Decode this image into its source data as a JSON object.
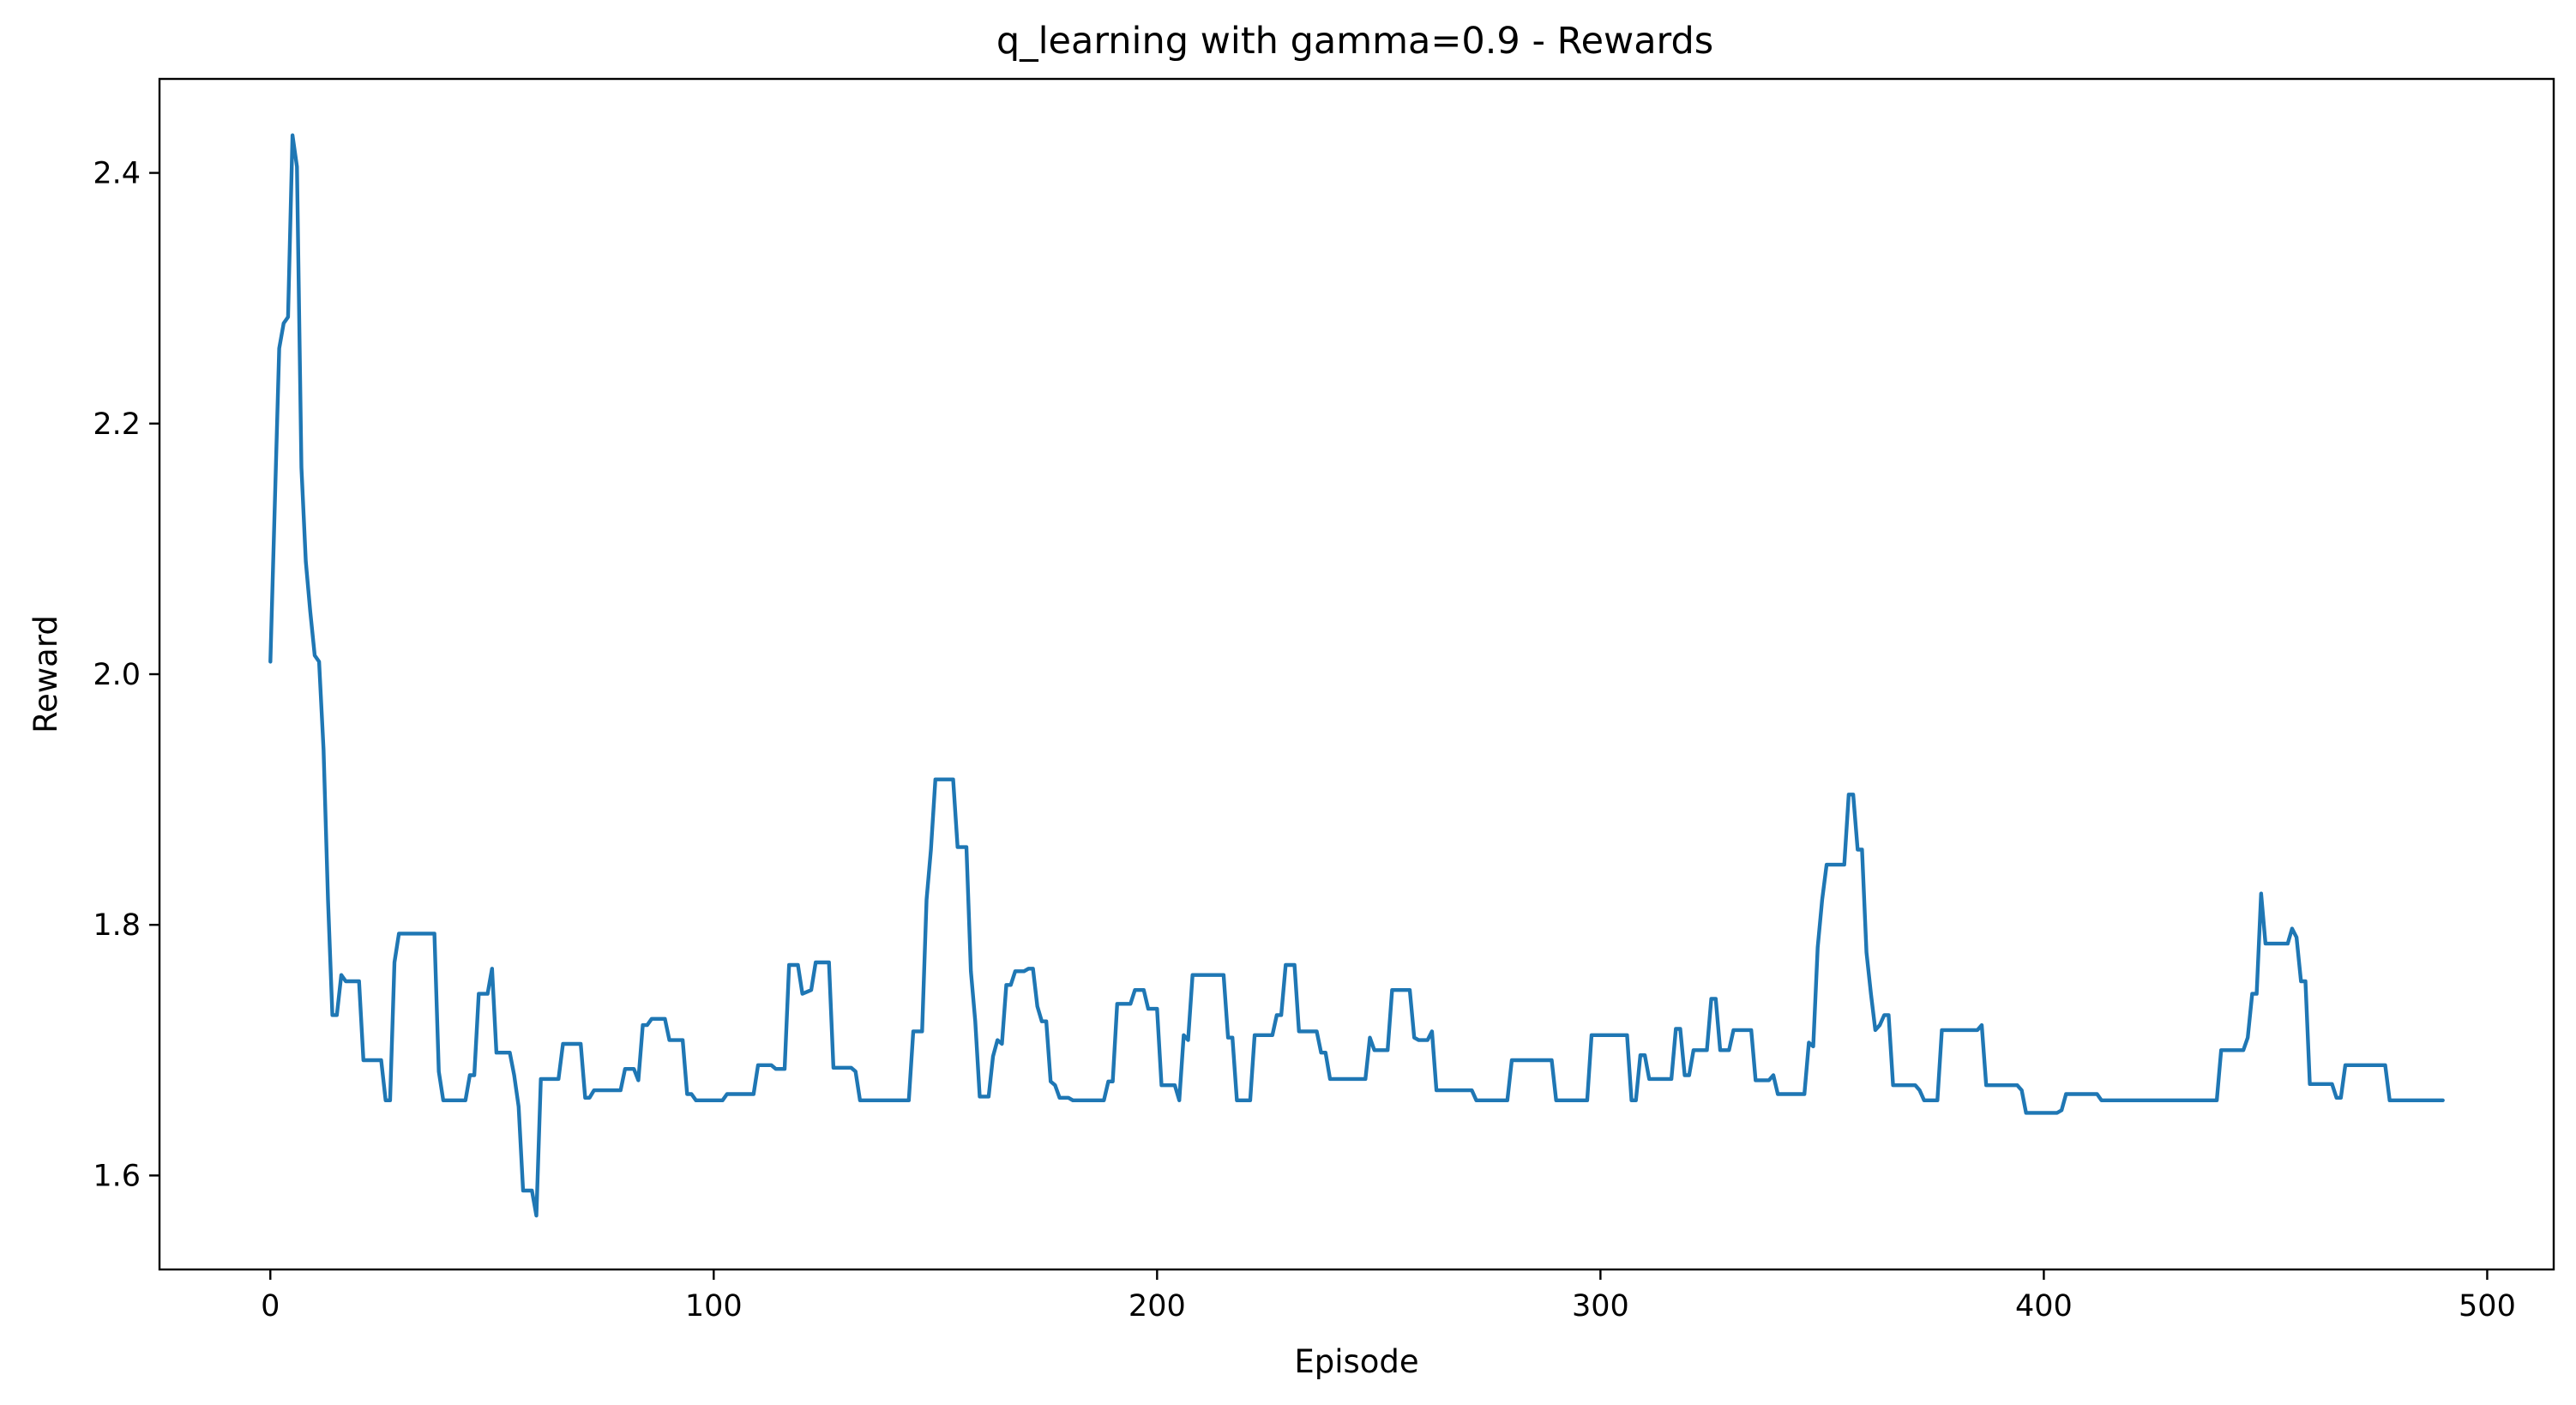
{
  "chart_data": {
    "type": "line",
    "title": "q_learning with gamma=0.9 - Rewards",
    "xlabel": "Episode",
    "ylabel": "Reward",
    "xlim": [
      -25,
      515
    ],
    "ylim": [
      1.525,
      2.475
    ],
    "xticks": [
      0,
      100,
      200,
      300,
      400,
      500
    ],
    "yticks": [
      1.6,
      1.8,
      2.0,
      2.2,
      2.4
    ],
    "xtick_labels": [
      "0",
      "100",
      "200",
      "300",
      "400",
      "500"
    ],
    "ytick_labels": [
      "1.6",
      "1.8",
      "2.0",
      "2.2",
      "2.4"
    ],
    "grid": false,
    "series_color": "#1f77b4",
    "series": [
      {
        "points": [
          [
            0,
            2.01
          ],
          [
            2,
            2.26
          ],
          [
            3,
            2.28
          ],
          [
            4,
            2.285
          ],
          [
            5,
            2.43
          ],
          [
            6,
            2.405
          ],
          [
            7,
            2.165
          ],
          [
            8,
            2.09
          ],
          [
            9,
            2.05
          ],
          [
            10,
            2.015
          ],
          [
            11,
            2.01
          ],
          [
            12,
            1.94
          ],
          [
            13,
            1.82
          ],
          [
            14,
            1.728
          ],
          [
            15,
            1.728
          ],
          [
            16,
            1.76
          ],
          [
            17,
            1.755
          ],
          [
            20,
            1.755
          ],
          [
            21,
            1.692
          ],
          [
            23,
            1.692
          ],
          [
            25,
            1.692
          ],
          [
            26,
            1.66
          ],
          [
            27,
            1.66
          ],
          [
            28,
            1.77
          ],
          [
            29,
            1.793
          ],
          [
            35,
            1.793
          ],
          [
            37,
            1.793
          ],
          [
            38,
            1.683
          ],
          [
            39,
            1.66
          ],
          [
            44,
            1.66
          ],
          [
            45,
            1.68
          ],
          [
            46,
            1.68
          ],
          [
            47,
            1.745
          ],
          [
            49,
            1.745
          ],
          [
            50,
            1.765
          ],
          [
            51,
            1.698
          ],
          [
            54,
            1.698
          ],
          [
            55,
            1.68
          ],
          [
            56,
            1.655
          ],
          [
            57,
            1.588
          ],
          [
            59,
            1.588
          ],
          [
            60,
            1.568
          ],
          [
            61,
            1.677
          ],
          [
            65,
            1.677
          ],
          [
            66,
            1.705
          ],
          [
            70,
            1.705
          ],
          [
            71,
            1.662
          ],
          [
            72,
            1.662
          ],
          [
            73,
            1.668
          ],
          [
            79,
            1.668
          ],
          [
            80,
            1.685
          ],
          [
            82,
            1.685
          ],
          [
            83,
            1.676
          ],
          [
            84,
            1.72
          ],
          [
            85,
            1.72
          ],
          [
            86,
            1.725
          ],
          [
            89,
            1.725
          ],
          [
            90,
            1.708
          ],
          [
            93,
            1.708
          ],
          [
            94,
            1.665
          ],
          [
            95,
            1.665
          ],
          [
            96,
            1.66
          ],
          [
            102,
            1.66
          ],
          [
            103,
            1.665
          ],
          [
            109,
            1.665
          ],
          [
            110,
            1.688
          ],
          [
            113,
            1.688
          ],
          [
            114,
            1.685
          ],
          [
            116,
            1.685
          ],
          [
            117,
            1.768
          ],
          [
            119,
            1.768
          ],
          [
            120,
            1.745
          ],
          [
            122,
            1.748
          ],
          [
            123,
            1.77
          ],
          [
            126,
            1.77
          ],
          [
            127,
            1.686
          ],
          [
            131,
            1.686
          ],
          [
            132,
            1.683
          ],
          [
            133,
            1.66
          ],
          [
            144,
            1.66
          ],
          [
            145,
            1.715
          ],
          [
            147,
            1.715
          ],
          [
            148,
            1.82
          ],
          [
            149,
            1.86
          ],
          [
            150,
            1.916
          ],
          [
            154,
            1.916
          ],
          [
            155,
            1.862
          ],
          [
            157,
            1.862
          ],
          [
            158,
            1.763
          ],
          [
            159,
            1.723
          ],
          [
            160,
            1.663
          ],
          [
            162,
            1.663
          ],
          [
            163,
            1.695
          ],
          [
            164,
            1.708
          ],
          [
            165,
            1.705
          ],
          [
            166,
            1.752
          ],
          [
            167,
            1.752
          ],
          [
            168,
            1.763
          ],
          [
            170,
            1.763
          ],
          [
            171,
            1.765
          ],
          [
            172,
            1.765
          ],
          [
            173,
            1.735
          ],
          [
            174,
            1.723
          ],
          [
            175,
            1.723
          ],
          [
            176,
            1.675
          ],
          [
            177,
            1.672
          ],
          [
            178,
            1.662
          ],
          [
            180,
            1.662
          ],
          [
            181,
            1.66
          ],
          [
            188,
            1.66
          ],
          [
            189,
            1.675
          ],
          [
            190,
            1.675
          ],
          [
            191,
            1.737
          ],
          [
            194,
            1.737
          ],
          [
            195,
            1.748
          ],
          [
            197,
            1.748
          ],
          [
            198,
            1.733
          ],
          [
            200,
            1.733
          ],
          [
            201,
            1.672
          ],
          [
            204,
            1.672
          ],
          [
            205,
            1.66
          ],
          [
            206,
            1.712
          ],
          [
            207,
            1.708
          ],
          [
            208,
            1.76
          ],
          [
            215,
            1.76
          ],
          [
            216,
            1.71
          ],
          [
            217,
            1.71
          ],
          [
            218,
            1.66
          ],
          [
            221,
            1.66
          ],
          [
            222,
            1.712
          ],
          [
            226,
            1.712
          ],
          [
            227,
            1.728
          ],
          [
            228,
            1.728
          ],
          [
            229,
            1.768
          ],
          [
            231,
            1.768
          ],
          [
            232,
            1.715
          ],
          [
            236,
            1.715
          ],
          [
            237,
            1.698
          ],
          [
            238,
            1.698
          ],
          [
            239,
            1.677
          ],
          [
            247,
            1.677
          ],
          [
            248,
            1.71
          ],
          [
            249,
            1.7
          ],
          [
            252,
            1.7
          ],
          [
            253,
            1.748
          ],
          [
            257,
            1.748
          ],
          [
            258,
            1.71
          ],
          [
            259,
            1.708
          ],
          [
            261,
            1.708
          ],
          [
            262,
            1.715
          ],
          [
            263,
            1.668
          ],
          [
            271,
            1.668
          ],
          [
            272,
            1.66
          ],
          [
            279,
            1.66
          ],
          [
            280,
            1.692
          ],
          [
            289,
            1.692
          ],
          [
            290,
            1.66
          ],
          [
            297,
            1.66
          ],
          [
            298,
            1.712
          ],
          [
            306,
            1.712
          ],
          [
            307,
            1.66
          ],
          [
            308,
            1.66
          ],
          [
            309,
            1.696
          ],
          [
            310,
            1.696
          ],
          [
            311,
            1.677
          ],
          [
            316,
            1.677
          ],
          [
            317,
            1.717
          ],
          [
            318,
            1.717
          ],
          [
            319,
            1.68
          ],
          [
            320,
            1.68
          ],
          [
            321,
            1.7
          ],
          [
            324,
            1.7
          ],
          [
            325,
            1.741
          ],
          [
            326,
            1.741
          ],
          [
            327,
            1.7
          ],
          [
            329,
            1.7
          ],
          [
            330,
            1.716
          ],
          [
            334,
            1.716
          ],
          [
            335,
            1.676
          ],
          [
            338,
            1.676
          ],
          [
            339,
            1.68
          ],
          [
            340,
            1.665
          ],
          [
            346,
            1.665
          ],
          [
            347,
            1.706
          ],
          [
            348,
            1.703
          ],
          [
            349,
            1.782
          ],
          [
            350,
            1.82
          ],
          [
            351,
            1.848
          ],
          [
            355,
            1.848
          ],
          [
            356,
            1.904
          ],
          [
            357,
            1.904
          ],
          [
            358,
            1.86
          ],
          [
            359,
            1.86
          ],
          [
            360,
            1.778
          ],
          [
            361,
            1.745
          ],
          [
            362,
            1.716
          ],
          [
            363,
            1.72
          ],
          [
            364,
            1.728
          ],
          [
            365,
            1.728
          ],
          [
            366,
            1.672
          ],
          [
            371,
            1.672
          ],
          [
            372,
            1.668
          ],
          [
            373,
            1.66
          ],
          [
            376,
            1.66
          ],
          [
            377,
            1.716
          ],
          [
            385,
            1.716
          ],
          [
            386,
            1.72
          ],
          [
            387,
            1.672
          ],
          [
            394,
            1.672
          ],
          [
            395,
            1.668
          ],
          [
            396,
            1.65
          ],
          [
            403,
            1.65
          ],
          [
            404,
            1.652
          ],
          [
            405,
            1.665
          ],
          [
            412,
            1.665
          ],
          [
            413,
            1.66
          ],
          [
            439,
            1.66
          ],
          [
            440,
            1.7
          ],
          [
            445,
            1.7
          ],
          [
            446,
            1.71
          ],
          [
            447,
            1.745
          ],
          [
            448,
            1.745
          ],
          [
            449,
            1.825
          ],
          [
            450,
            1.785
          ],
          [
            455,
            1.785
          ],
          [
            456,
            1.797
          ],
          [
            457,
            1.79
          ],
          [
            458,
            1.755
          ],
          [
            459,
            1.755
          ],
          [
            460,
            1.673
          ],
          [
            465,
            1.673
          ],
          [
            466,
            1.662
          ],
          [
            467,
            1.662
          ],
          [
            468,
            1.688
          ],
          [
            477,
            1.688
          ],
          [
            478,
            1.66
          ],
          [
            490,
            1.66
          ]
        ]
      }
    ]
  }
}
